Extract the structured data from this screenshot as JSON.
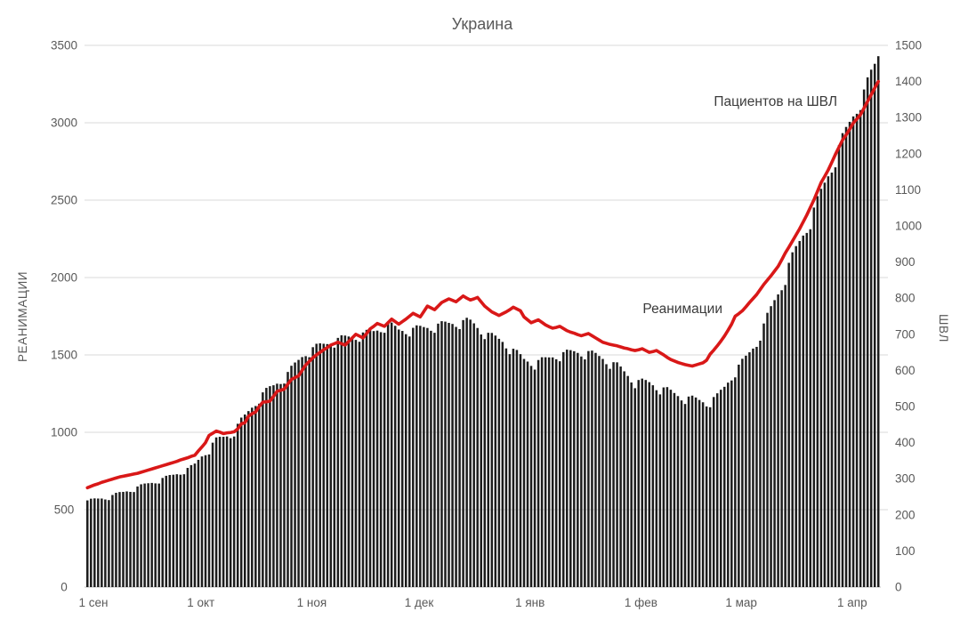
{
  "title": "Украина",
  "annotations": {
    "line_label": "Пациентов на ШВЛ",
    "bars_label": "Реанимации"
  },
  "colors": {
    "bar": "#1c1c1c",
    "line": "#d91818",
    "grid": "#d9d9d9",
    "axis_line": "#c0c0c0",
    "axis_text": "#595959",
    "annotation_text": "#3b3b3b",
    "background": "#ffffff"
  },
  "chart_data": {
    "type": "bar",
    "subtype": "combo bar+line, dual axis",
    "title": "Украина",
    "x_unit": "day",
    "x_range_label": "1 сен — 10 апр (daily)",
    "x_month_tick_labels": [
      "1 сен",
      "1 окт",
      "1 ноя",
      "1 дек",
      "1 янв",
      "1 фев",
      "1 мар",
      "1 апр"
    ],
    "x_month_tick_day_index": [
      0,
      30,
      61,
      91,
      122,
      153,
      181,
      212
    ],
    "left_axis": {
      "label": "РЕАНИМАЦИИ",
      "min": 0,
      "max": 3500,
      "step": 500
    },
    "right_axis": {
      "label": "ШВЛ",
      "min": 0,
      "max": 1500,
      "step": 100
    },
    "grid": "horizontal gridlines at left-axis steps, no vertical grid, legend off, labels as in-plot annotations",
    "series": [
      {
        "name": "Реанимации",
        "type": "bar",
        "axis": "left",
        "color": "#1c1c1c",
        "values": [
          560,
          571,
          573,
          572,
          572,
          566,
          562,
          595,
          609,
          614,
          615,
          618,
          615,
          614,
          650,
          664,
          669,
          671,
          673,
          670,
          669,
          705,
          719,
          724,
          726,
          729,
          726,
          729,
          770,
          788,
          798,
          822,
          844,
          852,
          857,
          933,
          967,
          971,
          971,
          973,
          962,
          973,
          1055,
          1095,
          1115,
          1137,
          1159,
          1170,
          1185,
          1258,
          1287,
          1298,
          1304,
          1314,
          1312,
          1315,
          1390,
          1430,
          1451,
          1468,
          1486,
          1492,
          1485,
          1550,
          1572,
          1575,
          1572,
          1570,
          1556,
          1547,
          1610,
          1627,
          1625,
          1619,
          1614,
          1597,
          1585,
          1645,
          1662,
          1660,
          1654,
          1657,
          1647,
          1643,
          1710,
          1709,
          1688,
          1664,
          1655,
          1634,
          1619,
          1675,
          1691,
          1688,
          1680,
          1674,
          1656,
          1643,
          1702,
          1718,
          1715,
          1707,
          1700,
          1681,
          1667,
          1725,
          1740,
          1728,
          1704,
          1674,
          1632,
          1602,
          1643,
          1642,
          1625,
          1604,
          1584,
          1542,
          1505,
          1540,
          1532,
          1505,
          1474,
          1457,
          1429,
          1405,
          1467,
          1485,
          1485,
          1484,
          1484,
          1472,
          1459,
          1518,
          1534,
          1531,
          1524,
          1513,
          1490,
          1471,
          1525,
          1528,
          1513,
          1493,
          1474,
          1440,
          1410,
          1453,
          1452,
          1425,
          1394,
          1364,
          1322,
          1285,
          1338,
          1347,
          1338,
          1324,
          1304,
          1272,
          1245,
          1290,
          1292,
          1275,
          1254,
          1234,
          1206,
          1183,
          1231,
          1237,
          1225,
          1209,
          1194,
          1167,
          1162,
          1228,
          1252,
          1275,
          1294,
          1321,
          1335,
          1355,
          1437,
          1475,
          1495,
          1517,
          1541,
          1552,
          1592,
          1703,
          1772,
          1815,
          1854,
          1891,
          1918,
          1952,
          2095,
          2163,
          2203,
          2236,
          2271,
          2288,
          2312,
          2452,
          2526,
          2573,
          2613,
          2654,
          2678,
          2712,
          2855,
          2933,
          2973,
          3006,
          3041,
          3058,
          3082,
          3215,
          3293,
          3343,
          3381,
          3430
        ]
      },
      {
        "name": "Пациентов на ШВЛ",
        "type": "line",
        "axis": "right",
        "color": "#d91818",
        "values": [
          275,
          279,
          283,
          286,
          290,
          293,
          296,
          299,
          302,
          305,
          307,
          309,
          311,
          313,
          315,
          318,
          321,
          324,
          327,
          330,
          333,
          336,
          339,
          342,
          345,
          348,
          352,
          355,
          358,
          362,
          365,
          377,
          388,
          400,
          420,
          426,
          432,
          429,
          425,
          427,
          428,
          430,
          438,
          452,
          455,
          473,
          480,
          485,
          500,
          512,
          513,
          515,
          528,
          542,
          545,
          548,
          562,
          575,
          580,
          585,
          600,
          615,
          625,
          635,
          643,
          650,
          657,
          663,
          670,
          674,
          678,
          674,
          670,
          680,
          690,
          700,
          695,
          690,
          702,
          715,
          722,
          730,
          726,
          722,
          732,
          742,
          735,
          728,
          735,
          742,
          750,
          758,
          753,
          748,
          763,
          778,
          773,
          768,
          778,
          788,
          793,
          798,
          794,
          790,
          798,
          806,
          800,
          795,
          798,
          802,
          790,
          778,
          770,
          762,
          757,
          752,
          757,
          762,
          768,
          775,
          770,
          765,
          748,
          740,
          732,
          736,
          740,
          733,
          726,
          721,
          717,
          719,
          722,
          716,
          710,
          706,
          703,
          699,
          696,
          699,
          702,
          696,
          690,
          684,
          678,
          675,
          672,
          670,
          668,
          665,
          662,
          660,
          657,
          655,
          657,
          660,
          655,
          650,
          652,
          655,
          649,
          643,
          636,
          630,
          626,
          622,
          619,
          616,
          614,
          612,
          615,
          618,
          621,
          628,
          645,
          656,
          668,
          681,
          695,
          711,
          728,
          750,
          757,
          765,
          776,
          788,
          799,
          810,
          824,
          838,
          850,
          862,
          875,
          888,
          906,
          925,
          941,
          958,
          975,
          992,
          1011,
          1030,
          1051,
          1072,
          1096,
          1120,
          1137,
          1155,
          1176,
          1198,
          1218,
          1238,
          1252,
          1268,
          1285,
          1296,
          1308,
          1326,
          1345,
          1363,
          1382,
          1400
        ]
      }
    ]
  }
}
